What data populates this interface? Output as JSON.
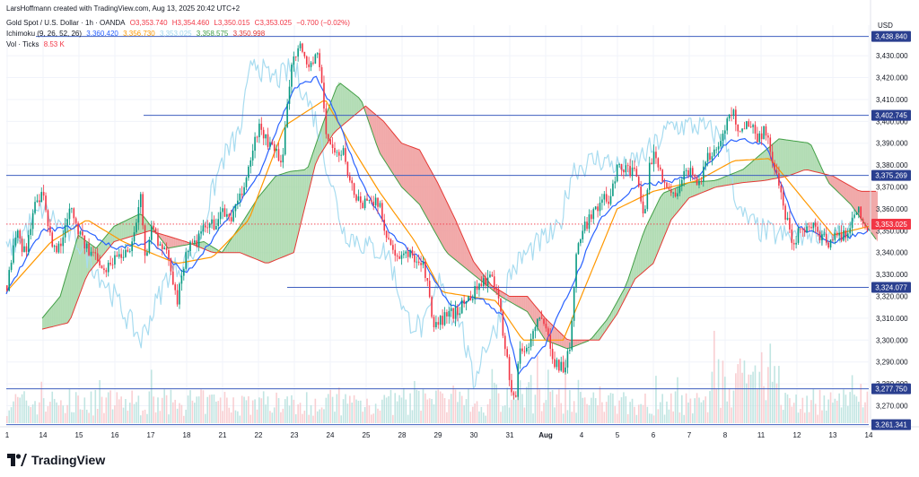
{
  "header": {
    "created_by": "LarsHoffmann created with TradingView.com, Aug 13, 2025 20:42 UTC+2",
    "symbol_line": {
      "name": "Gold Spot / U.S. Dollar · 1h · OANDA",
      "open": "O3,353.740",
      "high": "H3,354.460",
      "low": "L3,350.015",
      "close": "C3,353.025",
      "change": "−0.700 (−0.02%)"
    },
    "ichimoku_line": {
      "name": "Ichimoku (9, 26, 52, 26)",
      "v1": "3,360.420",
      "v2": "3,356.730",
      "v3": "3,353.025",
      "v4": "3,358.575",
      "v5": "3,350.998"
    },
    "vol_line": {
      "name": "Vol · Ticks",
      "value": "8.53 K"
    }
  },
  "currency": "USD",
  "brand": "TradingView",
  "colors": {
    "up": "#089981",
    "down": "#f23645",
    "tenkan": "#2962ff",
    "kijun": "#ff9800",
    "chikou": "#a8dcf0",
    "span_a": "#43a047",
    "span_b": "#e53935",
    "cloud_bull": "#a5d6a7",
    "cloud_bear": "#ef9a9a",
    "hline": "#3f5fbf",
    "label_bg": "#2a3f8f",
    "last_price": "#f23645"
  },
  "chart_data": {
    "type": "candlestick",
    "ylim": [
      3262,
      3444
    ],
    "yticks": [
      3270,
      3280,
      3290,
      3300,
      3310,
      3320,
      3330,
      3340,
      3350,
      3360,
      3370,
      3380,
      3390,
      3400,
      3410,
      3420,
      3430
    ],
    "ytick_labels": [
      "3,270.000",
      "3,280.000",
      "3,290.000",
      "3,300.000",
      "3,310.000",
      "3,320.000",
      "3,330.000",
      "3,340.000",
      "3,350.000",
      "3,360.000",
      "3,370.000",
      "3,380.000",
      "3,390.000",
      "3,400.000",
      "3,410.000",
      "3,420.000",
      "3,430.000"
    ],
    "xticks": [
      "1",
      "14",
      "15",
      "16",
      "17",
      "18",
      "21",
      "22",
      "23",
      "24",
      "25",
      "28",
      "29",
      "30",
      "31",
      "Aug",
      "4",
      "5",
      "6",
      "7",
      "8",
      "11",
      "12",
      "13",
      "14"
    ],
    "levels": [
      {
        "value": 3438.84,
        "label": "3,438.840"
      },
      {
        "value": 3402.745,
        "label": "3,402.745"
      },
      {
        "value": 3375.269,
        "label": "3,375.269"
      },
      {
        "value": 3324.077,
        "label": "3,324.077"
      },
      {
        "value": 3277.75,
        "label": "3,277.750"
      },
      {
        "value": 3261.341,
        "label": "3,261.341"
      }
    ],
    "last_price": {
      "value": 3353.025,
      "label": "3,353.025"
    },
    "price_path": [
      [
        0,
        3325
      ],
      [
        10,
        3350
      ],
      [
        20,
        3340
      ],
      [
        30,
        3360
      ],
      [
        40,
        3366
      ],
      [
        50,
        3342
      ],
      [
        60,
        3343
      ],
      [
        70,
        3363
      ],
      [
        80,
        3350
      ],
      [
        90,
        3340
      ],
      [
        100,
        3339
      ],
      [
        110,
        3332
      ],
      [
        120,
        3338
      ],
      [
        130,
        3340
      ],
      [
        140,
        3345
      ],
      [
        150,
        3370
      ],
      [
        152,
        3340
      ],
      [
        155,
        3335
      ],
      [
        160,
        3355
      ],
      [
        170,
        3342
      ],
      [
        180,
        3338
      ],
      [
        190,
        3318
      ],
      [
        195,
        3330
      ],
      [
        200,
        3342
      ],
      [
        210,
        3344
      ],
      [
        220,
        3351
      ],
      [
        230,
        3353
      ],
      [
        240,
        3358
      ],
      [
        250,
        3356
      ],
      [
        260,
        3365
      ],
      [
        270,
        3380
      ],
      [
        280,
        3398
      ],
      [
        290,
        3390
      ],
      [
        300,
        3385
      ],
      [
        305,
        3378
      ],
      [
        310,
        3400
      ],
      [
        318,
        3430
      ],
      [
        325,
        3435
      ],
      [
        335,
        3425
      ],
      [
        345,
        3430
      ],
      [
        350,
        3420
      ],
      [
        355,
        3395
      ],
      [
        365,
        3385
      ],
      [
        375,
        3385
      ],
      [
        385,
        3368
      ],
      [
        395,
        3362
      ],
      [
        405,
        3366
      ],
      [
        415,
        3360
      ],
      [
        425,
        3345
      ],
      [
        435,
        3335
      ],
      [
        445,
        3340
      ],
      [
        455,
        3338
      ],
      [
        465,
        3333
      ],
      [
        475,
        3305
      ],
      [
        485,
        3310
      ],
      [
        495,
        3312
      ],
      [
        505,
        3315
      ],
      [
        515,
        3320
      ],
      [
        525,
        3325
      ],
      [
        535,
        3328
      ],
      [
        545,
        3325
      ],
      [
        555,
        3296
      ],
      [
        560,
        3280
      ],
      [
        565,
        3270
      ],
      [
        570,
        3295
      ],
      [
        580,
        3296
      ],
      [
        590,
        3310
      ],
      [
        600,
        3305
      ],
      [
        610,
        3290
      ],
      [
        620,
        3287
      ],
      [
        628,
        3300
      ],
      [
        633,
        3340
      ],
      [
        640,
        3348
      ],
      [
        650,
        3358
      ],
      [
        660,
        3363
      ],
      [
        670,
        3365
      ],
      [
        680,
        3380
      ],
      [
        690,
        3378
      ],
      [
        700,
        3375
      ],
      [
        710,
        3355
      ],
      [
        715,
        3382
      ],
      [
        720,
        3384
      ],
      [
        730,
        3375
      ],
      [
        740,
        3365
      ],
      [
        750,
        3373
      ],
      [
        760,
        3378
      ],
      [
        770,
        3372
      ],
      [
        780,
        3383
      ],
      [
        790,
        3388
      ],
      [
        800,
        3398
      ],
      [
        808,
        3405
      ],
      [
        815,
        3395
      ],
      [
        825,
        3400
      ],
      [
        835,
        3393
      ],
      [
        845,
        3396
      ],
      [
        855,
        3377
      ],
      [
        865,
        3360
      ],
      [
        875,
        3345
      ],
      [
        885,
        3352
      ],
      [
        895,
        3352
      ],
      [
        905,
        3348
      ],
      [
        915,
        3345
      ],
      [
        925,
        3348
      ],
      [
        935,
        3348
      ],
      [
        945,
        3362
      ],
      [
        955,
        3350
      ],
      [
        960,
        3353
      ]
    ],
    "tenkan_path": [
      [
        0,
        3322
      ],
      [
        40,
        3350
      ],
      [
        80,
        3352
      ],
      [
        120,
        3342
      ],
      [
        160,
        3345
      ],
      [
        200,
        3330
      ],
      [
        240,
        3352
      ],
      [
        280,
        3375
      ],
      [
        320,
        3415
      ],
      [
        345,
        3420
      ],
      [
        365,
        3405
      ],
      [
        395,
        3372
      ],
      [
        425,
        3350
      ],
      [
        465,
        3335
      ],
      [
        495,
        3315
      ],
      [
        525,
        3320
      ],
      [
        555,
        3310
      ],
      [
        570,
        3285
      ],
      [
        600,
        3298
      ],
      [
        630,
        3325
      ],
      [
        660,
        3355
      ],
      [
        700,
        3370
      ],
      [
        730,
        3372
      ],
      [
        770,
        3375
      ],
      [
        805,
        3392
      ],
      [
        845,
        3390
      ],
      [
        880,
        3352
      ],
      [
        920,
        3345
      ],
      [
        960,
        3350
      ]
    ],
    "kijun_path": [
      [
        0,
        3322
      ],
      [
        50,
        3345
      ],
      [
        90,
        3355
      ],
      [
        130,
        3345
      ],
      [
        190,
        3335
      ],
      [
        230,
        3338
      ],
      [
        270,
        3355
      ],
      [
        310,
        3398
      ],
      [
        355,
        3410
      ],
      [
        385,
        3388
      ],
      [
        415,
        3368
      ],
      [
        455,
        3345
      ],
      [
        485,
        3322
      ],
      [
        545,
        3318
      ],
      [
        575,
        3300
      ],
      [
        620,
        3300
      ],
      [
        640,
        3320
      ],
      [
        680,
        3360
      ],
      [
        720,
        3368
      ],
      [
        770,
        3373
      ],
      [
        810,
        3382
      ],
      [
        850,
        3383
      ],
      [
        880,
        3368
      ],
      [
        920,
        3348
      ],
      [
        960,
        3352
      ]
    ],
    "chikou_path": [
      [
        0,
        3340
      ],
      [
        40,
        3360
      ],
      [
        80,
        3345
      ],
      [
        120,
        3320
      ],
      [
        150,
        3300
      ],
      [
        180,
        3330
      ],
      [
        210,
        3340
      ],
      [
        240,
        3382
      ],
      [
        260,
        3395
      ],
      [
        275,
        3430
      ],
      [
        290,
        3420
      ],
      [
        305,
        3420
      ],
      [
        320,
        3425
      ],
      [
        345,
        3400
      ],
      [
        375,
        3350
      ],
      [
        405,
        3342
      ],
      [
        425,
        3340
      ],
      [
        445,
        3310
      ],
      [
        465,
        3305
      ],
      [
        485,
        3330
      ],
      [
        495,
        3312
      ],
      [
        505,
        3310
      ],
      [
        520,
        3280
      ],
      [
        530,
        3295
      ],
      [
        545,
        3305
      ],
      [
        560,
        3330
      ],
      [
        575,
        3338
      ],
      [
        595,
        3345
      ],
      [
        615,
        3350
      ],
      [
        630,
        3378
      ],
      [
        660,
        3383
      ],
      [
        690,
        3378
      ],
      [
        720,
        3388
      ],
      [
        740,
        3398
      ],
      [
        770,
        3398
      ],
      [
        800,
        3392
      ],
      [
        815,
        3358
      ],
      [
        840,
        3350
      ],
      [
        870,
        3347
      ],
      [
        900,
        3350
      ],
      [
        920,
        3348
      ],
      [
        945,
        3350
      ]
    ],
    "span_a_path": [
      [
        40,
        3310
      ],
      [
        60,
        3320
      ],
      [
        80,
        3348
      ],
      [
        100,
        3342
      ],
      [
        120,
        3352
      ],
      [
        150,
        3358
      ],
      [
        180,
        3342
      ],
      [
        220,
        3345
      ],
      [
        240,
        3340
      ],
      [
        260,
        3352
      ],
      [
        280,
        3365
      ],
      [
        300,
        3375
      ],
      [
        315,
        3377
      ],
      [
        335,
        3378
      ],
      [
        355,
        3402
      ],
      [
        370,
        3418
      ],
      [
        395,
        3410
      ],
      [
        415,
        3386
      ],
      [
        440,
        3370
      ],
      [
        460,
        3362
      ],
      [
        490,
        3340
      ],
      [
        520,
        3330
      ],
      [
        550,
        3320
      ],
      [
        580,
        3313
      ],
      [
        600,
        3300
      ],
      [
        625,
        3296
      ],
      [
        650,
        3300
      ],
      [
        670,
        3310
      ],
      [
        690,
        3325
      ],
      [
        710,
        3350
      ],
      [
        730,
        3367
      ],
      [
        760,
        3372
      ],
      [
        790,
        3373
      ],
      [
        820,
        3378
      ],
      [
        840,
        3385
      ],
      [
        860,
        3392
      ],
      [
        895,
        3390
      ],
      [
        915,
        3372
      ],
      [
        940,
        3362
      ],
      [
        970,
        3345
      ]
    ],
    "span_b_path": [
      [
        40,
        3305
      ],
      [
        70,
        3308
      ],
      [
        90,
        3330
      ],
      [
        120,
        3345
      ],
      [
        160,
        3350
      ],
      [
        200,
        3345
      ],
      [
        230,
        3340
      ],
      [
        260,
        3340
      ],
      [
        290,
        3335
      ],
      [
        320,
        3340
      ],
      [
        345,
        3382
      ],
      [
        365,
        3395
      ],
      [
        400,
        3407
      ],
      [
        420,
        3400
      ],
      [
        440,
        3390
      ],
      [
        460,
        3387
      ],
      [
        480,
        3372
      ],
      [
        500,
        3355
      ],
      [
        520,
        3336
      ],
      [
        540,
        3325
      ],
      [
        560,
        3320
      ],
      [
        580,
        3320
      ],
      [
        600,
        3310
      ],
      [
        625,
        3300
      ],
      [
        660,
        3300
      ],
      [
        680,
        3312
      ],
      [
        700,
        3328
      ],
      [
        720,
        3335
      ],
      [
        740,
        3355
      ],
      [
        760,
        3365
      ],
      [
        790,
        3370
      ],
      [
        820,
        3372
      ],
      [
        845,
        3373
      ],
      [
        870,
        3375
      ],
      [
        890,
        3378
      ],
      [
        920,
        3375
      ],
      [
        950,
        3368
      ],
      [
        970,
        3368
      ]
    ],
    "volume_hint": "tick volume bars along the bottom, tallest around Aug 8 (about 120 px scale max)"
  }
}
